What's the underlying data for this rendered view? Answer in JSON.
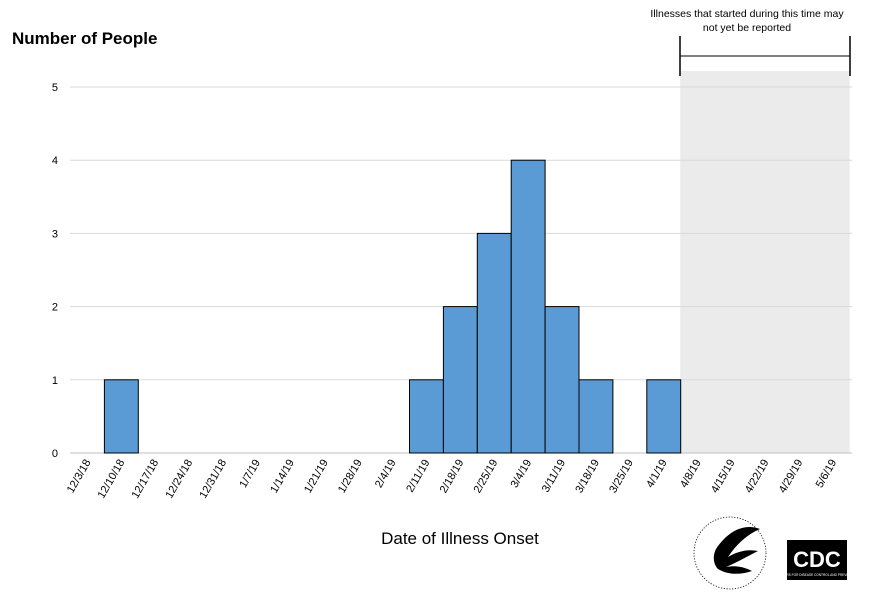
{
  "chart_data": {
    "type": "bar",
    "title": "",
    "ylabel": "Number of People",
    "xlabel": "Date of Illness Onset",
    "ylim": [
      0,
      5
    ],
    "yticks": [
      0,
      1,
      2,
      3,
      4,
      5
    ],
    "grid": true,
    "categories": [
      "12/3/18",
      "12/10/18",
      "12/17/18",
      "12/24/18",
      "12/31/18",
      "1/7/19",
      "1/14/19",
      "1/21/19",
      "1/28/19",
      "2/4/19",
      "2/11/19",
      "2/18/19",
      "2/25/19",
      "3/4/19",
      "3/11/19",
      "3/18/19",
      "3/25/19",
      "4/1/19",
      "4/8/19",
      "4/15/19",
      "4/22/19",
      "4/29/19",
      "5/6/19"
    ],
    "values": [
      0,
      1,
      0,
      0,
      0,
      0,
      0,
      0,
      0,
      0,
      1,
      2,
      3,
      4,
      2,
      1,
      0,
      1,
      0,
      0,
      0,
      0,
      0
    ],
    "bar_color": "#5b9bd5",
    "shaded_region": {
      "start": "4/8/19",
      "end": "5/6/19",
      "label": "Illnesses that started during this time may not yet be reported",
      "label_lines": [
        "Illnesses that started during this time may",
        "not yet be reported"
      ],
      "color": "#ebebeb"
    }
  },
  "logos": {
    "hhs": "HHS eagle seal",
    "cdc": "CDC",
    "cdc_tagline": "CENTERS FOR DISEASE CONTROL AND PREVENTION"
  }
}
